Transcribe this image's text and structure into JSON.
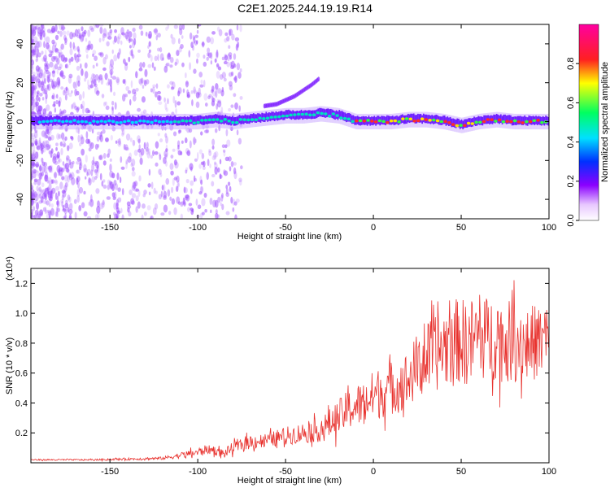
{
  "title": "C2E1.2025.244.19.19.R14",
  "colors": {
    "snr_line": "#e8322e",
    "ridge_low": "#8a00ff",
    "ridge_mid": "#00e0e0",
    "ridge_high": "#ff2020"
  },
  "chart_data": [
    {
      "type": "heatmap",
      "xlabel": "Height of straight line (km)",
      "ylabel": "Frequency (Hz)",
      "xlim": [
        -195,
        100
      ],
      "ylim": [
        -50,
        50
      ],
      "x_ticks": [
        -150,
        -100,
        -50,
        0,
        50,
        100
      ],
      "y_ticks": [
        -40,
        -20,
        0,
        20,
        40
      ],
      "colorbar": {
        "label": "Normalized spectral amplitude",
        "range": [
          0,
          1
        ],
        "ticks": [
          "0.0",
          "0.2",
          "0.4",
          "0.6",
          "0.8"
        ],
        "tick_values": [
          0,
          0.2,
          0.4,
          0.6,
          0.8
        ],
        "colormap": "rainbow (white-purple-blue-cyan-green-yellow-red-magenta)"
      },
      "ridge": {
        "x": [
          -195,
          -170,
          -150,
          -130,
          -110,
          -100,
          -90,
          -80,
          -70,
          -60,
          -50,
          -40,
          -30,
          -20,
          -10,
          0,
          10,
          20,
          30,
          40,
          50,
          60,
          70,
          80,
          90,
          100
        ],
        "y": [
          0,
          0,
          0,
          0,
          0,
          0,
          1,
          0,
          1,
          2,
          3,
          3,
          4,
          3,
          0,
          0,
          0,
          1,
          1,
          0,
          -2,
          0,
          1,
          0,
          0,
          0
        ]
      },
      "upper_branch": {
        "x": [
          -62,
          -55,
          -50,
          -45,
          -40,
          -35,
          -31
        ],
        "y": [
          8,
          9,
          11,
          13,
          16,
          19,
          22
        ]
      }
    },
    {
      "type": "line",
      "xlabel": "Height of straight line (km)",
      "ylabel": "SNR (10 * v/v)",
      "scale_label": "(x10⁴)",
      "xlim": [
        -195,
        100
      ],
      "ylim": [
        0,
        1.3
      ],
      "x_ticks": [
        -150,
        -100,
        -50,
        0,
        50,
        100
      ],
      "y_ticks": [
        "0.2",
        "0.4",
        "0.6",
        "0.8",
        "1.0",
        "1.2"
      ],
      "y_tick_values": [
        0.2,
        0.4,
        0.6,
        0.8,
        1.0,
        1.2
      ],
      "series": [
        {
          "x": [
            -195,
            -180,
            -160,
            -140,
            -120,
            -110,
            -100,
            -95,
            -90,
            -85,
            -80,
            -75,
            -70,
            -60,
            -50,
            -40,
            -30,
            -20,
            -15,
            -10,
            -5,
            0,
            10,
            20,
            25,
            30,
            35,
            40,
            45,
            50,
            55,
            60,
            65,
            70,
            75,
            80,
            85,
            90,
            95,
            100
          ],
          "y": [
            0.02,
            0.02,
            0.02,
            0.025,
            0.03,
            0.05,
            0.07,
            0.09,
            0.08,
            0.06,
            0.1,
            0.12,
            0.14,
            0.15,
            0.18,
            0.2,
            0.22,
            0.3,
            0.35,
            0.38,
            0.4,
            0.45,
            0.5,
            0.55,
            0.65,
            0.7,
            0.72,
            0.78,
            0.8,
            0.82,
            0.8,
            0.85,
            0.83,
            0.85,
            0.8,
            0.82,
            0.8,
            0.8,
            0.82,
            0.85
          ],
          "amplitude": [
            0.005,
            0.005,
            0.005,
            0.008,
            0.01,
            0.02,
            0.03,
            0.03,
            0.03,
            0.03,
            0.04,
            0.04,
            0.05,
            0.05,
            0.06,
            0.07,
            0.08,
            0.12,
            0.13,
            0.15,
            0.15,
            0.17,
            0.18,
            0.2,
            0.22,
            0.24,
            0.25,
            0.27,
            0.3,
            0.28,
            0.3,
            0.3,
            0.28,
            0.3,
            0.27,
            0.28,
            0.27,
            0.26,
            0.25,
            0.25
          ]
        }
      ]
    }
  ]
}
